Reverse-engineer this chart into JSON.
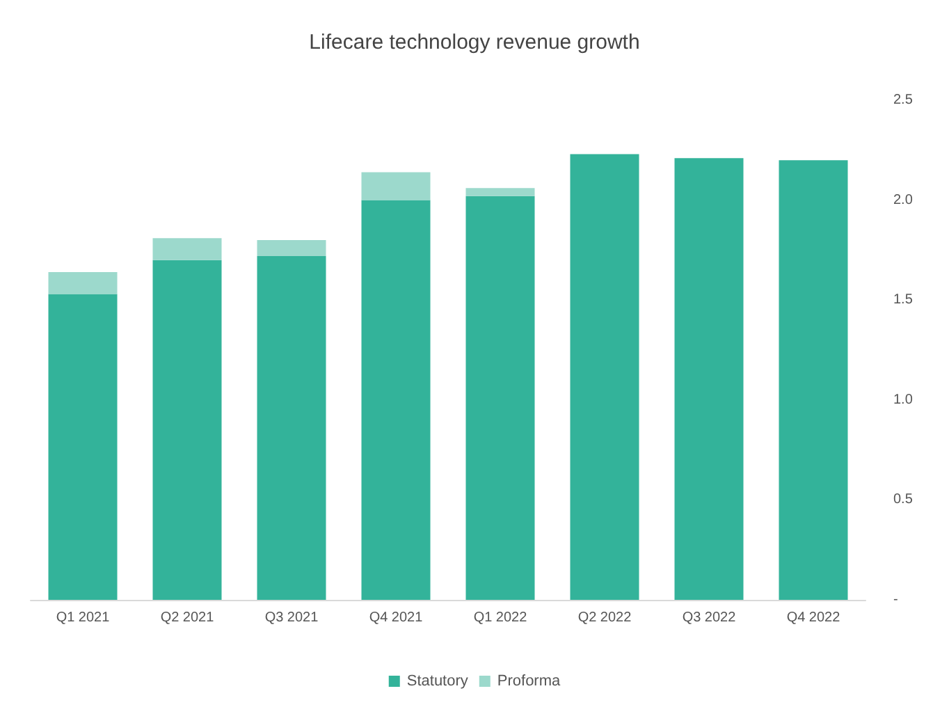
{
  "chart_data": {
    "type": "bar",
    "title": "Lifecare technology revenue growth",
    "stacked": true,
    "categories": [
      "Q1 2021",
      "Q2 2021",
      "Q3 2021",
      "Q4 2021",
      "Q1 2022",
      "Q2 2022",
      "Q3 2022",
      "Q4 2022"
    ],
    "series": [
      {
        "name": "Statutory",
        "color": "#33b39a",
        "values": [
          1.53,
          1.7,
          1.72,
          2.0,
          2.02,
          2.23,
          2.21,
          2.2
        ]
      },
      {
        "name": "Proforma",
        "color": "#9cd9cc",
        "values": [
          0.11,
          0.11,
          0.08,
          0.14,
          0.04,
          null,
          null,
          null
        ]
      }
    ],
    "ylim": [
      0,
      2.5
    ],
    "yticks": [
      {
        "value": 0,
        "label": "-"
      },
      0.5,
      {
        "value": 1,
        "label": "1.0"
      },
      1.5,
      {
        "value": 2,
        "label": "2.0"
      },
      2.5
    ],
    "grid": false,
    "legend": "bottom"
  }
}
